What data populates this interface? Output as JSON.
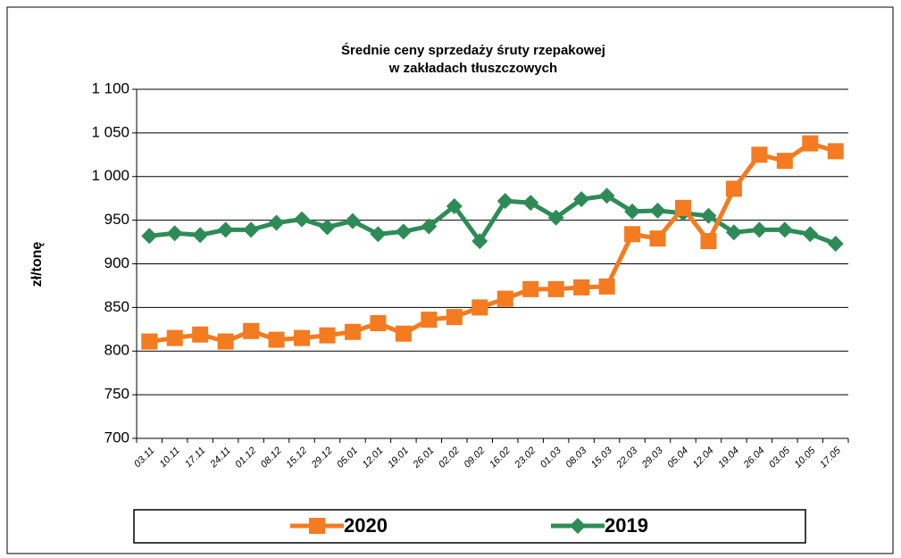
{
  "chart_data": {
    "type": "line",
    "title": "Średnie ceny sprzedaży śruty rzepakowej",
    "subtitle": "w zakładach tłuszczowych",
    "y_label": "zł/tonę",
    "categories": [
      "03.11",
      "10.11",
      "17.11",
      "24.11",
      "01.12",
      "08.12",
      "15.12",
      "29.12",
      "05.01",
      "12.01",
      "19.01",
      "26.01",
      "02.02",
      "09.02",
      "16.02",
      "23.02",
      "01.03",
      "08.03",
      "15.03",
      "22.03",
      "29.03",
      "05.04",
      "12.04",
      "19.04",
      "26.04",
      "03.05",
      "10.05",
      "17.05"
    ],
    "series": [
      {
        "name": "2020",
        "color": "#f47b20",
        "marker": "square",
        "values": [
          811,
          815,
          819,
          811,
          823,
          813,
          815,
          818,
          822,
          832,
          820,
          836,
          839,
          850,
          860,
          871,
          871,
          873,
          874,
          934,
          929,
          964,
          926,
          986,
          1025,
          1018,
          1038,
          1029
        ]
      },
      {
        "name": "2019",
        "color": "#2e8b57",
        "marker": "diamond",
        "values": [
          932,
          935,
          933,
          939,
          939,
          947,
          951,
          942,
          949,
          934,
          937,
          943,
          966,
          926,
          972,
          970,
          953,
          974,
          978,
          960,
          961,
          958,
          955,
          936,
          939,
          939,
          934,
          923
        ]
      }
    ],
    "ylim": [
      700,
      1100
    ],
    "yticks": [
      700,
      750,
      800,
      850,
      900,
      950,
      {
        "value": 1000,
        "label": "1 000"
      },
      {
        "value": 1050,
        "label": "1 050"
      },
      {
        "value": 1100,
        "label": "1 100"
      }
    ],
    "grid": true,
    "legend": "bottom"
  }
}
